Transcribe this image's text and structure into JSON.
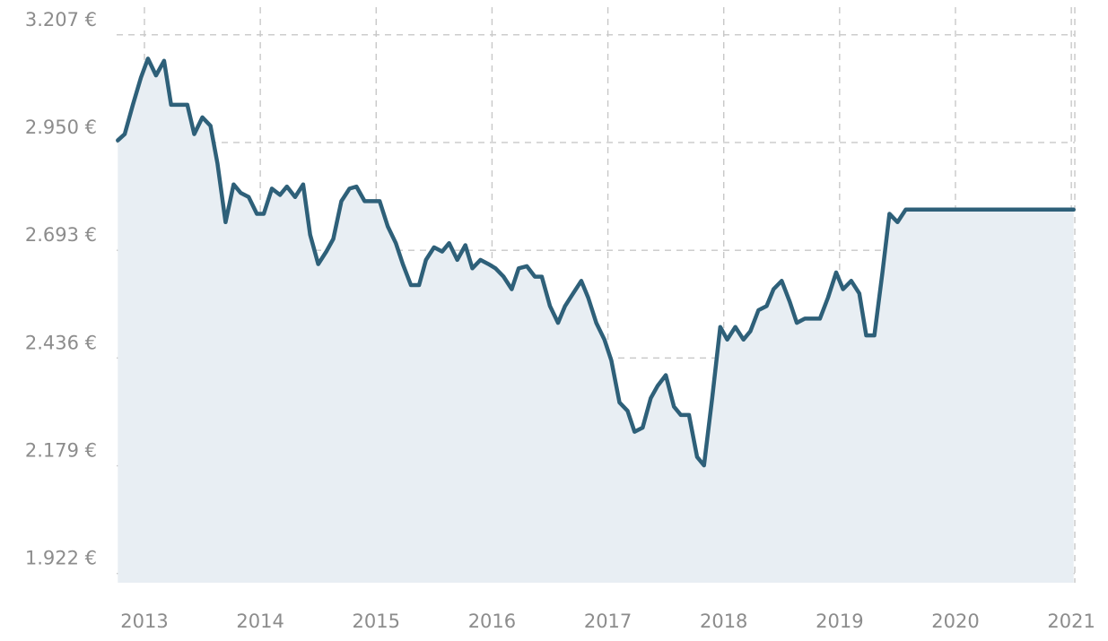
{
  "chart_data": {
    "type": "area",
    "title": "",
    "xlabel": "",
    "ylabel": "",
    "x_tick_labels": [
      "2013",
      "2014",
      "2015",
      "2016",
      "2017",
      "2018",
      "2019",
      "2020",
      "2021"
    ],
    "y_tick_labels": [
      "3.207 €",
      "2.950 €",
      "2.693 €",
      "2.436 €",
      "2.179 €",
      "1.922 €"
    ],
    "y_ticks": [
      3207,
      2950,
      2693,
      2436,
      2179,
      1922
    ],
    "ylim": [
      1900,
      3260
    ],
    "xlim": [
      2012.76,
      2021.03
    ],
    "grid": true,
    "legend": "none",
    "colors": {
      "line": "#2e6079",
      "area": "#e8eef3",
      "grid": "#c8c8c8",
      "tick_text": "#8c8c8c"
    },
    "series": [
      {
        "x": [
          2012.77,
          2012.83,
          2012.9,
          2012.97,
          2013.03,
          2013.1,
          2013.17,
          2013.23,
          2013.3,
          2013.37,
          2013.43,
          2013.5,
          2013.57,
          2013.63,
          2013.7,
          2013.77,
          2013.83,
          2013.9,
          2013.97,
          2014.03,
          2014.1,
          2014.17,
          2014.23,
          2014.3,
          2014.37,
          2014.43,
          2014.5,
          2014.57,
          2014.63,
          2014.7,
          2014.77,
          2014.83,
          2014.9,
          2014.97,
          2015.03,
          2015.1,
          2015.17,
          2015.23,
          2015.3,
          2015.37,
          2015.43,
          2015.5,
          2015.57,
          2015.63,
          2015.7,
          2015.77,
          2015.83,
          2015.9,
          2015.97,
          2016.03,
          2016.1,
          2016.17,
          2016.23,
          2016.3,
          2016.37,
          2016.43,
          2016.5,
          2016.57,
          2016.63,
          2016.7,
          2016.77,
          2016.83,
          2016.9,
          2016.97,
          2017.03,
          2017.1,
          2017.17,
          2017.23,
          2017.3,
          2017.37,
          2017.43,
          2017.5,
          2017.57,
          2017.63,
          2017.7,
          2017.77,
          2017.83,
          2017.9,
          2017.97,
          2018.03,
          2018.1,
          2018.17,
          2018.23,
          2018.3,
          2018.37,
          2018.43,
          2018.5,
          2018.57,
          2018.63,
          2018.7,
          2018.77,
          2018.83,
          2018.9,
          2018.97,
          2019.03,
          2019.1,
          2019.17,
          2019.23,
          2019.3,
          2019.37,
          2019.43,
          2019.5,
          2019.57,
          2019.63,
          2019.7,
          2019.77,
          2019.83,
          2019.9,
          2019.97,
          2020.03,
          2020.1,
          2020.17,
          2020.23,
          2020.3,
          2020.37,
          2020.43,
          2020.5,
          2020.57,
          2020.63,
          2020.7,
          2020.77,
          2020.83,
          2020.9,
          2020.97,
          2021.02
        ],
        "y": [
          2955,
          2970,
          3040,
          3105,
          3150,
          3110,
          3145,
          3040,
          3040,
          3040,
          2970,
          3010,
          2990,
          2900,
          2760,
          2850,
          2830,
          2820,
          2780,
          2780,
          2840,
          2825,
          2845,
          2820,
          2850,
          2730,
          2660,
          2690,
          2720,
          2810,
          2840,
          2845,
          2810,
          2810,
          2810,
          2750,
          2710,
          2660,
          2610,
          2610,
          2670,
          2700,
          2690,
          2710,
          2670,
          2705,
          2650,
          2670,
          2660,
          2650,
          2630,
          2600,
          2650,
          2655,
          2630,
          2630,
          2560,
          2520,
          2560,
          2590,
          2620,
          2580,
          2520,
          2480,
          2430,
          2330,
          2310,
          2260,
          2270,
          2340,
          2370,
          2395,
          2320,
          2300,
          2300,
          2200,
          2180,
          2340,
          2510,
          2480,
          2510,
          2480,
          2500,
          2550,
          2560,
          2600,
          2620,
          2570,
          2520,
          2530,
          2530,
          2530,
          2580,
          2640,
          2600,
          2620,
          2590,
          2490,
          2490,
          2640,
          2780,
          2760,
          2790,
          2790,
          2790,
          2790,
          2790,
          2790,
          2790,
          2790,
          2790,
          2790,
          2790,
          2790,
          2790,
          2790,
          2790,
          2790,
          2790,
          2790,
          2790,
          2790,
          2790,
          2790,
          2790
        ]
      }
    ]
  }
}
